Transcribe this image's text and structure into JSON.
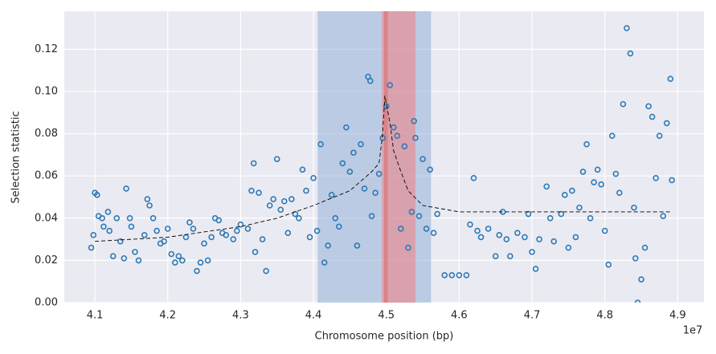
{
  "chart_data": {
    "type": "scatter",
    "xlabel": "Chromosome position (bp)",
    "ylabel": "Selection statistic",
    "x_offset_label": "1e7",
    "xlim": [
      4.058,
      4.936
    ],
    "ylim": [
      0,
      0.138
    ],
    "xticks": [
      4.1,
      4.2,
      4.3,
      4.4,
      4.5,
      4.6,
      4.7,
      4.8,
      4.9
    ],
    "yticks": [
      {
        "value": 0,
        "label": "0.00"
      },
      0.02,
      0.04,
      0.06,
      0.08,
      {
        "value": 0.1,
        "label": "0.10"
      },
      0.12
    ],
    "grid": true,
    "background": "#eaeaf2",
    "regions": [
      {
        "xlim": [
          4.4057,
          4.5614
        ],
        "color": "rgba(139,172,214,0.5)"
      },
      {
        "xlim": [
          4.494,
          4.54
        ],
        "color": "rgba(240,128,128,0.55)"
      },
      {
        "xlim": [
          4.497,
          4.502
        ],
        "color": "rgba(220,90,90,0.45)"
      }
    ],
    "points": {
      "color": "#2f7ab5",
      "x": [
        4.095,
        4.098,
        4.1,
        4.103,
        4.105,
        4.11,
        4.112,
        4.118,
        4.12,
        4.125,
        4.13,
        4.135,
        4.14,
        4.143,
        4.148,
        4.15,
        4.155,
        4.16,
        4.168,
        4.172,
        4.175,
        4.18,
        4.185,
        4.19,
        4.195,
        4.2,
        4.205,
        4.21,
        4.215,
        4.22,
        4.225,
        4.23,
        4.235,
        4.24,
        4.245,
        4.25,
        4.255,
        4.26,
        4.265,
        4.27,
        4.275,
        4.28,
        4.29,
        4.295,
        4.3,
        4.31,
        4.315,
        4.318,
        4.32,
        4.325,
        4.33,
        4.335,
        4.34,
        4.345,
        4.35,
        4.355,
        4.36,
        4.365,
        4.37,
        4.375,
        4.38,
        4.385,
        4.39,
        4.395,
        4.4,
        4.405,
        4.41,
        4.415,
        4.42,
        4.425,
        4.43,
        4.435,
        4.44,
        4.445,
        4.45,
        4.455,
        4.46,
        4.465,
        4.47,
        4.475,
        4.478,
        4.48,
        4.485,
        4.49,
        4.495,
        4.5,
        4.505,
        4.51,
        4.515,
        4.52,
        4.525,
        4.53,
        4.535,
        4.538,
        4.54,
        4.545,
        4.55,
        4.555,
        4.56,
        4.565,
        4.57,
        4.58,
        4.59,
        4.6,
        4.61,
        4.615,
        4.62,
        4.625,
        4.63,
        4.64,
        4.65,
        4.655,
        4.66,
        4.665,
        4.67,
        4.68,
        4.69,
        4.695,
        4.7,
        4.705,
        4.71,
        4.72,
        4.725,
        4.73,
        4.74,
        4.745,
        4.75,
        4.755,
        4.76,
        4.765,
        4.77,
        4.775,
        4.78,
        4.785,
        4.79,
        4.795,
        4.8,
        4.805,
        4.81,
        4.815,
        4.82,
        4.825,
        4.83,
        4.835,
        4.84,
        4.842,
        4.845,
        4.85,
        4.855,
        4.86,
        4.865,
        4.87,
        4.875,
        4.88,
        4.885,
        4.89,
        4.892
      ],
      "y": [
        0.026,
        0.032,
        0.052,
        0.051,
        0.041,
        0.04,
        0.036,
        0.043,
        0.034,
        0.022,
        0.04,
        0.029,
        0.021,
        0.054,
        0.04,
        0.036,
        0.024,
        0.02,
        0.032,
        0.049,
        0.046,
        0.04,
        0.034,
        0.028,
        0.029,
        0.035,
        0.023,
        0.019,
        0.022,
        0.02,
        0.031,
        0.038,
        0.035,
        0.015,
        0.019,
        0.028,
        0.02,
        0.031,
        0.04,
        0.039,
        0.033,
        0.032,
        0.03,
        0.034,
        0.037,
        0.035,
        0.053,
        0.066,
        0.024,
        0.052,
        0.03,
        0.015,
        0.046,
        0.049,
        0.068,
        0.044,
        0.048,
        0.033,
        0.049,
        0.042,
        0.04,
        0.063,
        0.053,
        0.031,
        0.059,
        0.034,
        0.075,
        0.019,
        0.027,
        0.051,
        0.04,
        0.036,
        0.066,
        0.083,
        0.062,
        0.071,
        0.027,
        0.075,
        0.054,
        0.107,
        0.105,
        0.041,
        0.052,
        0.061,
        0.078,
        0.093,
        0.103,
        0.083,
        0.079,
        0.035,
        0.074,
        0.026,
        0.043,
        0.086,
        0.078,
        0.041,
        0.068,
        0.035,
        0.063,
        0.033,
        0.042,
        0.013,
        0.013,
        0.013,
        0.013,
        0.037,
        0.059,
        0.034,
        0.031,
        0.035,
        0.022,
        0.032,
        0.043,
        0.03,
        0.022,
        0.033,
        0.031,
        0.042,
        0.024,
        0.016,
        0.03,
        0.055,
        0.04,
        0.029,
        0.042,
        0.051,
        0.026,
        0.053,
        0.031,
        0.045,
        0.062,
        0.075,
        0.04,
        0.057,
        0.063,
        0.056,
        0.034,
        0.018,
        0.079,
        0.061,
        0.052,
        0.094,
        0.13,
        0.118,
        0.045,
        0.021,
        0,
        0.011,
        0.026,
        0.093,
        0.088,
        0.059,
        0.079,
        0.041,
        0.085,
        0.106,
        0.058
      ]
    },
    "curve": {
      "color": "#000000",
      "x": [
        4.1,
        4.2,
        4.3,
        4.35,
        4.4,
        4.45,
        4.48,
        4.49,
        4.495,
        4.498,
        4.505,
        4.51,
        4.52,
        4.53,
        4.55,
        4.6,
        4.7,
        4.8,
        4.89
      ],
      "y": [
        0.029,
        0.031,
        0.036,
        0.04,
        0.046,
        0.053,
        0.062,
        0.066,
        0.08,
        0.098,
        0.085,
        0.072,
        0.062,
        0.053,
        0.046,
        0.043,
        0.043,
        0.043,
        0.043
      ]
    }
  }
}
